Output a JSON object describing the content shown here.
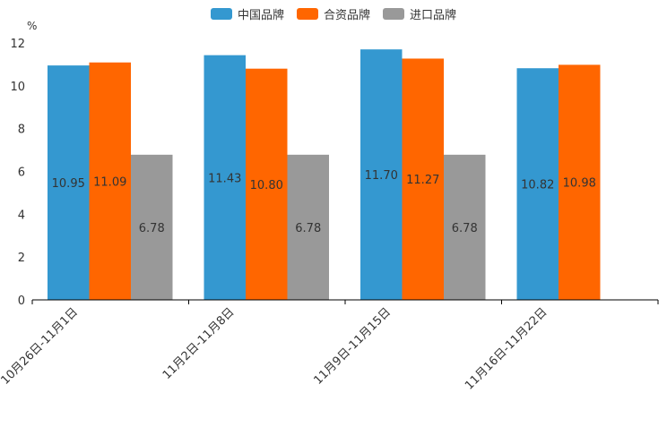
{
  "chart_data": {
    "type": "bar",
    "unit_label": "%",
    "categories": [
      "10月26日-11月1日",
      "11月2日-11月8日",
      "11月9日-11月15日",
      "11月16日-11月22日"
    ],
    "series": [
      {
        "name": "中国品牌",
        "color": "#3498d0",
        "values": [
          10.95,
          11.43,
          11.7,
          10.82
        ],
        "labels": [
          "10.95",
          "11.43",
          "11.70",
          "10.82"
        ]
      },
      {
        "name": "合资品牌",
        "color": "#ff6600",
        "values": [
          11.09,
          10.8,
          11.27,
          10.98
        ],
        "labels": [
          "11.09",
          "10.80",
          "11.27",
          "10.98"
        ]
      },
      {
        "name": "进口品牌",
        "color": "#999999",
        "values": [
          6.78,
          6.78,
          6.78,
          null
        ],
        "labels": [
          "6.78",
          "6.78",
          "6.78",
          null
        ]
      }
    ],
    "ylim": [
      0,
      12
    ],
    "yticks": [
      0,
      2,
      4,
      6,
      8,
      10,
      12
    ],
    "ytick_labels": [
      "0",
      "2",
      "4",
      "6",
      "8",
      "10",
      "12"
    ],
    "legend_position": "top-center",
    "grid": false
  }
}
